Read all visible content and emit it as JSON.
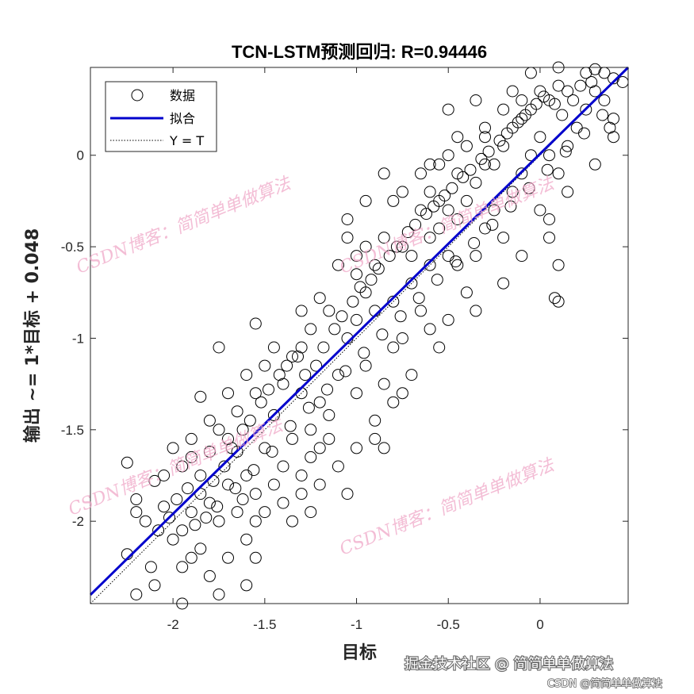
{
  "chart_data": {
    "type": "scatter",
    "title": "TCN-LSTM预测回归: R=0.94446",
    "xlabel": "目标",
    "ylabel": "输出 ~= 1*目标 + 0.048",
    "xlim": [
      -2.45,
      0.48
    ],
    "ylim": [
      -2.45,
      0.48
    ],
    "xticks": [
      -2,
      -1.5,
      -1,
      -0.5,
      0
    ],
    "yticks": [
      -2,
      -1.5,
      -1,
      -0.5,
      0
    ],
    "xtick_labels": [
      "-2",
      "-1.5",
      "-1",
      "-0.5",
      "0"
    ],
    "ytick_labels": [
      "-2",
      "-1.5",
      "-1",
      "-0.5",
      "0"
    ],
    "grid": false,
    "legend": {
      "placement": "top-left",
      "entries": [
        "数据",
        "拟合",
        "Y = T"
      ]
    },
    "fit": {
      "slope": 1,
      "intercept": 0.048
    },
    "series": [
      {
        "name": "数据",
        "points": [
          [
            -2.2,
            -1.88
          ],
          [
            -2.25,
            -1.68
          ],
          [
            -2.1,
            -1.78
          ],
          [
            -2.05,
            -1.92
          ],
          [
            -1.95,
            -2.05
          ],
          [
            -1.9,
            -1.95
          ],
          [
            -2.0,
            -2.1
          ],
          [
            -1.85,
            -1.75
          ],
          [
            -1.8,
            -1.9
          ],
          [
            -2.15,
            -2.0
          ],
          [
            -1.95,
            -2.25
          ],
          [
            -1.7,
            -2.2
          ],
          [
            -1.6,
            -2.35
          ],
          [
            -1.75,
            -2.4
          ],
          [
            -2.1,
            -2.35
          ],
          [
            -1.95,
            -2.47
          ],
          [
            -2.2,
            -2.4
          ],
          [
            -2.25,
            -2.18
          ],
          [
            -1.9,
            -1.55
          ],
          [
            -1.8,
            -1.45
          ],
          [
            -1.7,
            -1.55
          ],
          [
            -1.85,
            -1.32
          ],
          [
            -1.75,
            -1.5
          ],
          [
            -1.65,
            -1.62
          ],
          [
            -1.6,
            -1.75
          ],
          [
            -1.55,
            -1.85
          ],
          [
            -1.7,
            -1.8
          ],
          [
            -1.5,
            -1.6
          ],
          [
            -1.45,
            -1.42
          ],
          [
            -1.4,
            -1.25
          ],
          [
            -1.55,
            -1.3
          ],
          [
            -1.65,
            -1.4
          ],
          [
            -1.35,
            -1.1
          ],
          [
            -1.5,
            -1.15
          ],
          [
            -1.6,
            -1.2
          ],
          [
            -1.75,
            -1.05
          ],
          [
            -1.55,
            -0.92
          ],
          [
            -1.3,
            -1.3
          ],
          [
            -1.25,
            -1.5
          ],
          [
            -1.2,
            -1.35
          ],
          [
            -1.35,
            -1.55
          ],
          [
            -1.4,
            -1.7
          ],
          [
            -1.3,
            -1.85
          ],
          [
            -1.2,
            -1.6
          ],
          [
            -1.15,
            -1.42
          ],
          [
            -1.1,
            -1.2
          ],
          [
            -1.05,
            -1.0
          ],
          [
            -1.15,
            -0.85
          ],
          [
            -1.2,
            -0.78
          ],
          [
            -1.25,
            -0.95
          ],
          [
            -1.3,
            -1.05
          ],
          [
            -1.0,
            -0.9
          ],
          [
            -0.95,
            -1.15
          ],
          [
            -1.0,
            -1.3
          ],
          [
            -0.9,
            -1.45
          ],
          [
            -0.85,
            -1.25
          ],
          [
            -0.8,
            -1.05
          ],
          [
            -0.95,
            -0.75
          ],
          [
            -1.0,
            -0.55
          ],
          [
            -0.9,
            -0.6
          ],
          [
            -0.85,
            -0.45
          ],
          [
            -0.75,
            -0.5
          ],
          [
            -0.7,
            -0.7
          ],
          [
            -0.65,
            -0.85
          ],
          [
            -0.75,
            -1.0
          ],
          [
            -0.7,
            -1.2
          ],
          [
            -0.8,
            -1.35
          ],
          [
            -0.9,
            -1.55
          ],
          [
            -1.05,
            -1.85
          ],
          [
            -0.6,
            -0.95
          ],
          [
            -0.6,
            -0.6
          ],
          [
            -0.55,
            -0.4
          ],
          [
            -0.5,
            -0.3
          ],
          [
            -0.6,
            -0.2
          ],
          [
            -0.45,
            -0.6
          ],
          [
            -0.4,
            -0.75
          ],
          [
            -0.5,
            -0.9
          ],
          [
            -0.35,
            -0.55
          ],
          [
            -0.3,
            -0.4
          ],
          [
            -0.4,
            -0.25
          ],
          [
            -0.35,
            -0.15
          ],
          [
            -0.3,
            -0.05
          ],
          [
            -0.25,
            -0.3
          ],
          [
            -0.2,
            -0.45
          ],
          [
            -0.15,
            -0.2
          ],
          [
            -0.1,
            -0.1
          ],
          [
            -0.05,
            0.0
          ],
          [
            -0.2,
            0.05
          ],
          [
            -0.15,
            0.15
          ],
          [
            -0.1,
            0.2
          ],
          [
            0.0,
            0.1
          ],
          [
            0.05,
            0.0
          ],
          [
            0.1,
            -0.1
          ],
          [
            0.0,
            -0.3
          ],
          [
            0.05,
            -0.45
          ],
          [
            0.1,
            -0.6
          ],
          [
            0.08,
            -0.78
          ],
          [
            0.1,
            -0.8
          ],
          [
            0.15,
            0.05
          ],
          [
            0.2,
            0.15
          ],
          [
            0.25,
            0.25
          ],
          [
            0.3,
            0.35
          ],
          [
            0.35,
            0.3
          ],
          [
            0.4,
            0.2
          ],
          [
            0.45,
            0.4
          ],
          [
            0.35,
            0.45
          ],
          [
            0.25,
            0.45
          ],
          [
            0.15,
            0.35
          ],
          [
            0.05,
            0.3
          ],
          [
            -0.05,
            0.25
          ],
          [
            0.38,
            0.15
          ],
          [
            0.4,
            0.42
          ],
          [
            -0.25,
            -0.05
          ],
          [
            -0.3,
            0.1
          ],
          [
            -0.45,
            -0.1
          ],
          [
            -0.55,
            -0.05
          ],
          [
            -0.65,
            -0.3
          ],
          [
            -0.75,
            -0.2
          ],
          [
            -0.85,
            -0.1
          ],
          [
            -0.95,
            -0.25
          ],
          [
            -1.05,
            -0.45
          ],
          [
            -1.1,
            -0.6
          ],
          [
            -1.0,
            -0.65
          ],
          [
            -0.9,
            -0.85
          ],
          [
            -0.8,
            -0.8
          ],
          [
            -0.7,
            -0.55
          ],
          [
            -0.6,
            -0.45
          ],
          [
            -0.5,
            -0.55
          ],
          [
            -0.45,
            -0.35
          ],
          [
            -0.55,
            -0.25
          ],
          [
            -0.65,
            -0.1
          ],
          [
            -0.5,
            0.0
          ],
          [
            -0.4,
            0.05
          ],
          [
            -0.3,
            0.15
          ],
          [
            -0.2,
            0.25
          ],
          [
            -0.1,
            0.3
          ],
          [
            0.0,
            0.35
          ],
          [
            0.1,
            0.38
          ],
          [
            -1.85,
            -2.15
          ],
          [
            -1.8,
            -2.3
          ],
          [
            -1.9,
            -2.2
          ],
          [
            -1.75,
            -2.0
          ],
          [
            -1.65,
            -1.95
          ],
          [
            -1.6,
            -2.1
          ],
          [
            -1.55,
            -2.0
          ],
          [
            -1.5,
            -1.95
          ],
          [
            -1.45,
            -1.8
          ],
          [
            -1.4,
            -1.9
          ],
          [
            -1.35,
            -2.0
          ],
          [
            -1.3,
            -1.75
          ],
          [
            -1.25,
            -1.65
          ],
          [
            -1.2,
            -1.8
          ],
          [
            -1.15,
            -1.55
          ],
          [
            -1.1,
            -1.7
          ],
          [
            -2.0,
            -1.6
          ],
          [
            -2.05,
            -1.75
          ],
          [
            -1.95,
            -1.7
          ],
          [
            -1.9,
            -1.65
          ],
          [
            -1.85,
            -1.85
          ],
          [
            -1.8,
            -1.62
          ],
          [
            -1.78,
            -1.78
          ],
          [
            -1.72,
            -1.7
          ],
          [
            -1.68,
            -1.6
          ],
          [
            -1.62,
            -1.5
          ],
          [
            -1.58,
            -1.45
          ],
          [
            -1.52,
            -1.35
          ],
          [
            -1.48,
            -1.28
          ],
          [
            -1.42,
            -1.2
          ],
          [
            -1.38,
            -1.15
          ],
          [
            -1.32,
            -1.1
          ],
          [
            -1.28,
            -1.2
          ],
          [
            -1.22,
            -1.15
          ],
          [
            -1.18,
            -1.05
          ],
          [
            -1.12,
            -0.95
          ],
          [
            -1.08,
            -0.88
          ],
          [
            -1.02,
            -0.8
          ],
          [
            -0.98,
            -0.72
          ],
          [
            -0.92,
            -0.68
          ],
          [
            -0.88,
            -0.62
          ],
          [
            -0.82,
            -0.55
          ],
          [
            -0.78,
            -0.5
          ],
          [
            -0.72,
            -0.42
          ],
          [
            -0.68,
            -0.38
          ],
          [
            -0.62,
            -0.32
          ],
          [
            -0.58,
            -0.28
          ],
          [
            -0.52,
            -0.22
          ],
          [
            -0.48,
            -0.18
          ],
          [
            -0.42,
            -0.12
          ],
          [
            -0.38,
            -0.08
          ],
          [
            -0.32,
            -0.02
          ],
          [
            -0.28,
            0.02
          ],
          [
            -0.22,
            0.08
          ],
          [
            -0.18,
            0.12
          ],
          [
            -0.12,
            0.18
          ],
          [
            -0.08,
            0.22
          ],
          [
            -0.02,
            0.28
          ],
          [
            0.02,
            0.32
          ],
          [
            0.08,
            0.28
          ],
          [
            0.12,
            0.22
          ],
          [
            0.18,
            0.3
          ],
          [
            0.22,
            0.38
          ],
          [
            0.28,
            0.4
          ],
          [
            -2.12,
            -2.25
          ],
          [
            -2.08,
            -2.05
          ],
          [
            -2.02,
            -1.98
          ],
          [
            -1.98,
            -1.88
          ],
          [
            -1.92,
            -1.82
          ],
          [
            -1.88,
            -2.02
          ],
          [
            -1.82,
            -1.98
          ],
          [
            -1.76,
            -1.92
          ],
          [
            -1.66,
            -1.82
          ],
          [
            -1.62,
            -1.88
          ],
          [
            -1.56,
            -1.72
          ],
          [
            -1.46,
            -1.62
          ],
          [
            -1.36,
            -1.48
          ],
          [
            -1.26,
            -1.38
          ],
          [
            -1.16,
            -1.28
          ],
          [
            -1.06,
            -1.18
          ],
          [
            -0.96,
            -1.08
          ],
          [
            -0.86,
            -0.98
          ],
          [
            -0.76,
            -0.88
          ],
          [
            -0.66,
            -0.78
          ],
          [
            -0.56,
            -0.68
          ],
          [
            -0.46,
            -0.58
          ],
          [
            -0.36,
            -0.48
          ],
          [
            -0.26,
            -0.38
          ],
          [
            -0.16,
            -0.28
          ],
          [
            -0.06,
            -0.18
          ],
          [
            0.04,
            -0.08
          ],
          [
            0.14,
            0.02
          ],
          [
            0.24,
            0.12
          ],
          [
            0.34,
            0.22
          ],
          [
            -2.2,
            -1.95
          ],
          [
            -1.7,
            -1.3
          ],
          [
            -1.45,
            -1.05
          ],
          [
            -1.3,
            -0.85
          ],
          [
            -1.05,
            -0.35
          ],
          [
            -0.95,
            -0.5
          ],
          [
            -0.8,
            -0.25
          ],
          [
            -0.6,
            -0.05
          ],
          [
            -0.45,
            0.1
          ],
          [
            -0.35,
            0.3
          ],
          [
            -0.5,
            0.25
          ],
          [
            -0.15,
            0.35
          ],
          [
            -0.05,
            0.45
          ],
          [
            0.1,
            0.48
          ],
          [
            0.3,
            0.47
          ],
          [
            -1.55,
            -2.2
          ],
          [
            -1.25,
            -1.95
          ],
          [
            -1.0,
            -1.6
          ],
          [
            -0.85,
            -1.6
          ],
          [
            -0.75,
            -1.3
          ],
          [
            -0.55,
            -1.05
          ],
          [
            -0.35,
            -0.85
          ],
          [
            -0.2,
            -0.7
          ],
          [
            -0.1,
            -0.55
          ],
          [
            0.05,
            -0.35
          ],
          [
            0.15,
            -0.2
          ],
          [
            0.3,
            -0.05
          ],
          [
            0.4,
            0.1
          ]
        ]
      },
      {
        "name": "拟合",
        "line": [
          [
            -2.45,
            -2.402
          ],
          [
            0.48,
            0.528
          ]
        ]
      },
      {
        "name": "Y = T",
        "line": [
          [
            -2.45,
            -2.45
          ],
          [
            0.48,
            0.48
          ]
        ]
      }
    ],
    "colors": {
      "points": "#000000",
      "fit": "#0000cc",
      "identity": "#000000"
    }
  },
  "watermarks": {
    "text": "CSDN博客：简简单单做算法",
    "footer_main": "掘金技术社区 @ 简简单单做算法",
    "footer_small": "CSDN @简简单单做算法"
  }
}
